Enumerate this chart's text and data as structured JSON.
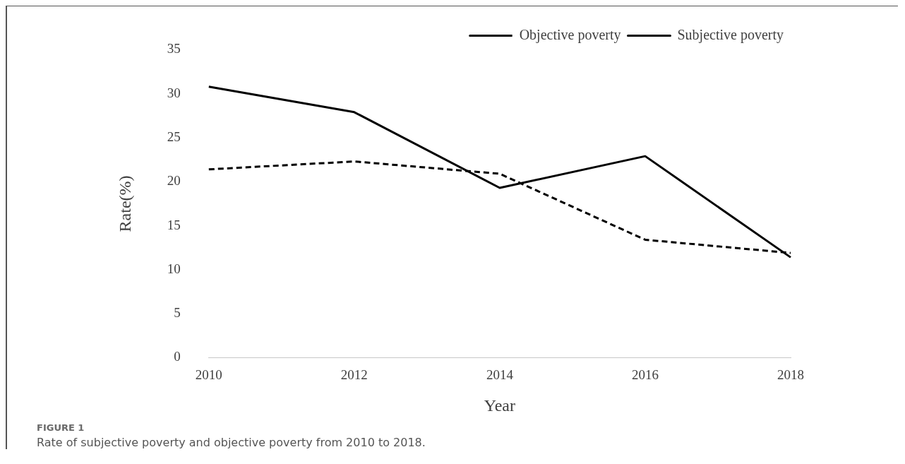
{
  "chart_data": {
    "type": "line",
    "xlabel": "Year",
    "ylabel": "Rate(%)",
    "categories": [
      "2010",
      "2012",
      "2014",
      "2016",
      "2018"
    ],
    "series": [
      {
        "name": "Objective poverty",
        "color": "#000000",
        "line_style": "dashed",
        "values": [
          21.4,
          22.3,
          20.9,
          13.4,
          11.9
        ]
      },
      {
        "name": "Subjective poverty",
        "color": "#000000",
        "line_style": "solid",
        "values": [
          30.8,
          27.9,
          19.3,
          22.9,
          11.4
        ]
      }
    ],
    "ylim": [
      0,
      35
    ],
    "yticks": [
      0,
      5,
      10,
      15,
      20,
      25,
      30,
      35
    ],
    "grid": false,
    "legend": "top right",
    "marker": "none",
    "annotations": [
      "FIGURE 1",
      "Rate of subjective poverty and objective poverty from 2010 to 2018."
    ]
  }
}
